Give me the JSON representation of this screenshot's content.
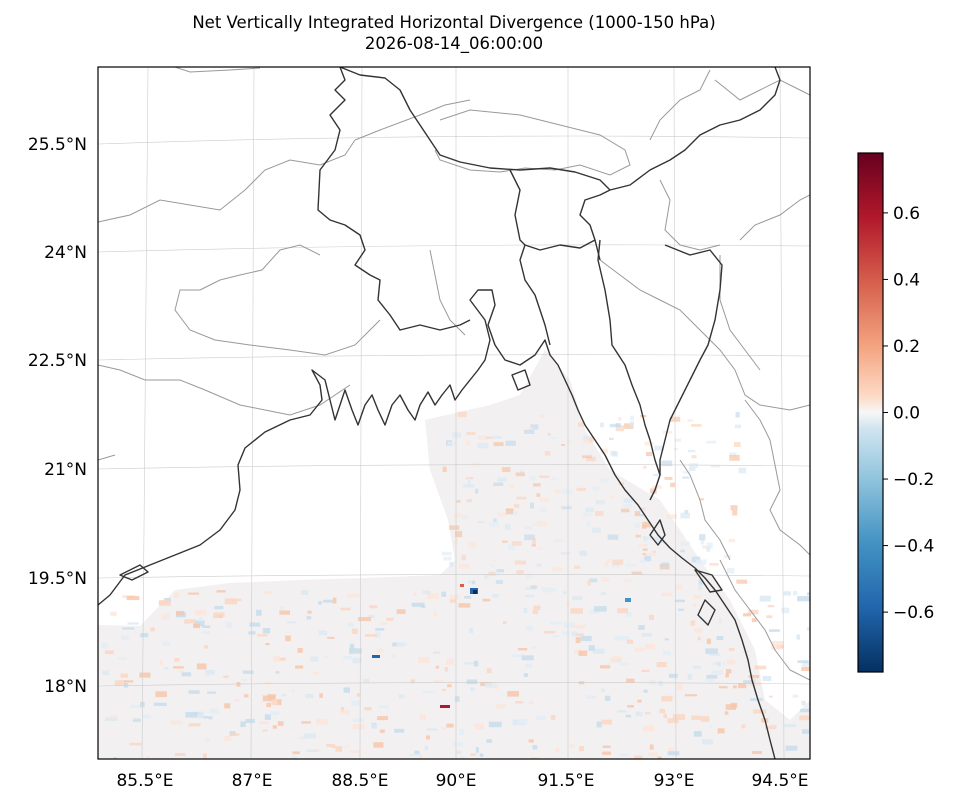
{
  "header": {
    "title": "Net Vertically Integrated Horizontal Divergence (1000-150 hPa)",
    "subtitle": "2026-08-14_06:00:00"
  },
  "map": {
    "projection": "lambert-conformal",
    "extent_lon": [
      84.5,
      95.0
    ],
    "extent_lat": [
      17.0,
      26.5
    ],
    "coastline_color": "#333333",
    "border_color": "#999999",
    "ocean_field_note_colors": [
      "#fbe3d6",
      "#e6f0f7",
      "#f7f7f7"
    ],
    "x_ticks": [
      "85.5°E",
      "87°E",
      "88.5°E",
      "90°E",
      "91.5°E",
      "93°E",
      "94.5°E"
    ],
    "y_ticks": [
      "25.5°N",
      "24°N",
      "22.5°N",
      "21°N",
      "19.5°N",
      "18°N"
    ],
    "gridlines": true
  },
  "colorbar": {
    "cmap": "RdBu_r",
    "range": [
      -0.78,
      0.78
    ],
    "ticks": [
      "0.6",
      "0.4",
      "0.2",
      "0.0",
      "−0.2",
      "−0.4",
      "−0.6"
    ],
    "tick_values": [
      0.6,
      0.4,
      0.2,
      0.0,
      -0.2,
      -0.4,
      -0.6
    ]
  }
}
